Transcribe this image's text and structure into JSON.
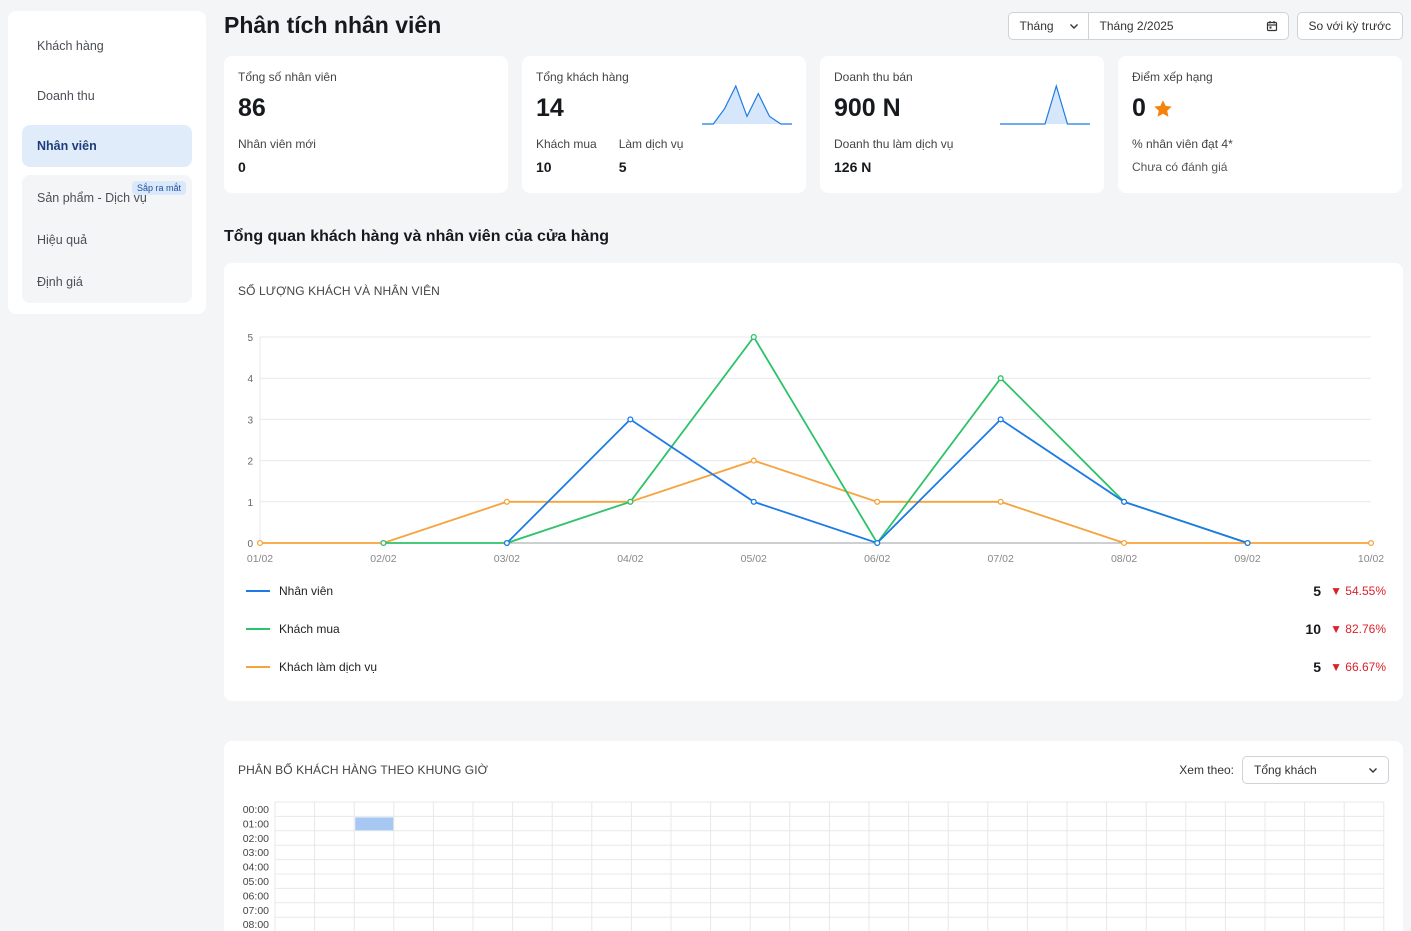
{
  "sidebar": {
    "items": [
      {
        "label": "Khách hàng"
      },
      {
        "label": "Doanh thu"
      },
      {
        "label": "Nhân viên"
      },
      {
        "label": "Sản phẩm - Dịch vụ",
        "badge": "Sắp ra mắt"
      },
      {
        "label": "Hiệu quả"
      },
      {
        "label": "Định giá"
      }
    ]
  },
  "header": {
    "title": "Phân tích nhân viên",
    "period_select": "Tháng",
    "date_value": "Tháng 2/2025",
    "compare_button": "So với kỳ trước"
  },
  "kpis": {
    "staff": {
      "label": "Tổng số nhân viên",
      "value": "86",
      "sub_label": "Nhân viên mới",
      "sub_value": "0"
    },
    "customers": {
      "label": "Tổng khách hàng",
      "value": "14",
      "buy_label": "Khách mua",
      "buy_value": "10",
      "service_label": "Làm dịch vụ",
      "service_value": "5",
      "spark": [
        0,
        0,
        2,
        5,
        1,
        4,
        1,
        0,
        0
      ]
    },
    "revenue": {
      "label": "Doanh thu bán",
      "value": "900 N",
      "sub_label": "Doanh thu làm dịch vụ",
      "sub_value": "126 N",
      "spark": [
        0,
        0,
        0,
        0,
        0,
        5,
        0,
        0,
        0
      ]
    },
    "rating": {
      "label": "Điểm xếp hạng",
      "value": "0",
      "sub_label": "% nhân viên đạt 4*",
      "sub_value": "Chưa có đánh giá"
    }
  },
  "overview": {
    "section_title": "Tổng quan khách hàng và nhân viên của cửa hàng",
    "card_title": "SỐ LƯỢNG KHÁCH VÀ NHÂN VIÊN"
  },
  "chart_data": {
    "type": "line",
    "title": "SỐ LƯỢNG KHÁCH VÀ NHÂN VIÊN",
    "x": [
      "01/02",
      "02/02",
      "03/02",
      "04/02",
      "05/02",
      "06/02",
      "07/02",
      "08/02",
      "09/02",
      "10/02"
    ],
    "ylim": [
      0,
      5
    ],
    "yticks": [
      "0",
      "1",
      "2",
      "3",
      "4",
      "5"
    ],
    "grid": true,
    "series": [
      {
        "name": "Nhân viên",
        "color": "#1e7be6",
        "values": [
          null,
          null,
          0,
          3,
          1,
          0,
          3,
          1,
          0,
          null
        ],
        "total": "5",
        "change": "54.55%"
      },
      {
        "name": "Khách mua",
        "color": "#2ec26a",
        "values": [
          null,
          0,
          0,
          1,
          5,
          0,
          4,
          1,
          0,
          null
        ],
        "total": "10",
        "change": "82.76%"
      },
      {
        "name": "Khách làm dịch vụ",
        "color": "#f7a23b",
        "values": [
          0,
          0,
          1,
          1,
          2,
          1,
          1,
          0,
          0,
          0
        ],
        "total": "5",
        "change": "66.67%"
      }
    ]
  },
  "distribution": {
    "title": "PHÂN BỐ KHÁCH HÀNG THEO KHUNG GIỜ",
    "view_label": "Xem theo:",
    "view_value": "Tổng khách",
    "hours": [
      "00:00",
      "01:00",
      "02:00",
      "03:00",
      "04:00",
      "05:00",
      "06:00",
      "07:00",
      "08:00"
    ],
    "highlight": {
      "row": 1,
      "col": 2
    }
  },
  "colors": {
    "accent": "#1e7be6",
    "down": "#d9222a",
    "star": "#f5820b"
  }
}
